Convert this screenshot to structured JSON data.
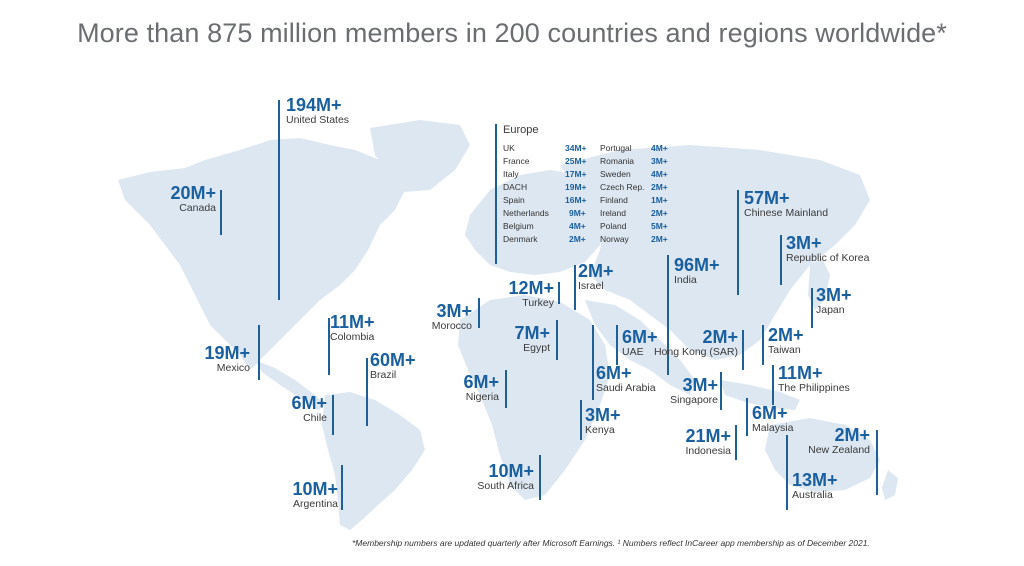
{
  "title": "More than 875 million members in 200 countries and regions worldwide*",
  "map_color": "#dde7f1",
  "accent_color": "#1a5fa0",
  "countries": [
    {
      "id": "us",
      "value": "194M+",
      "name": "United States"
    },
    {
      "id": "ca",
      "value": "20M+",
      "name": "Canada"
    },
    {
      "id": "mx",
      "value": "19M+",
      "name": "Mexico"
    },
    {
      "id": "co",
      "value": "11M+",
      "name": "Colombia"
    },
    {
      "id": "br",
      "value": "60M+",
      "name": "Brazil"
    },
    {
      "id": "cl",
      "value": "6M+",
      "name": "Chile"
    },
    {
      "id": "ar",
      "value": "10M+",
      "name": "Argentina"
    },
    {
      "id": "ma",
      "value": "3M+",
      "name": "Morocco"
    },
    {
      "id": "tr",
      "value": "12M+",
      "name": "Turkey"
    },
    {
      "id": "il",
      "value": "2M+",
      "name": "Israel"
    },
    {
      "id": "eg",
      "value": "7M+",
      "name": "Egypt"
    },
    {
      "id": "ng",
      "value": "6M+",
      "name": "Nigeria"
    },
    {
      "id": "ae",
      "value": "6M+",
      "name": "UAE"
    },
    {
      "id": "sa",
      "value": "6M+",
      "name": "Saudi Arabia"
    },
    {
      "id": "ke",
      "value": "3M+",
      "name": "Kenya"
    },
    {
      "id": "za",
      "value": "10M+",
      "name": "South Africa"
    },
    {
      "id": "in",
      "value": "96M+",
      "name": "India"
    },
    {
      "id": "cn",
      "value": "57M+",
      "name": "Chinese Mainland"
    },
    {
      "id": "kr",
      "value": "3M+",
      "name": "Republic of Korea"
    },
    {
      "id": "jp",
      "value": "3M+",
      "name": "Japan"
    },
    {
      "id": "hk",
      "value": "2M+",
      "name": "Hong Kong (SAR)"
    },
    {
      "id": "tw",
      "value": "2M+",
      "name": "Taiwan"
    },
    {
      "id": "ph",
      "value": "11M+",
      "name": "The Philippines"
    },
    {
      "id": "sg",
      "value": "3M+",
      "name": "Singapore"
    },
    {
      "id": "my",
      "value": "6M+",
      "name": "Malaysia"
    },
    {
      "id": "id",
      "value": "21M+",
      "name": "Indonesia"
    },
    {
      "id": "nz",
      "value": "2M+",
      "name": "New Zealand"
    },
    {
      "id": "au",
      "value": "13M+",
      "name": "Australia"
    }
  ],
  "europe": {
    "heading": "Europe",
    "col1": [
      {
        "name": "UK",
        "value": "34M+"
      },
      {
        "name": "France",
        "value": "25M+"
      },
      {
        "name": "Italy",
        "value": "17M+"
      },
      {
        "name": "DACH",
        "value": "19M+"
      },
      {
        "name": "Spain",
        "value": "16M+"
      },
      {
        "name": "Netherlands",
        "value": "9M+"
      },
      {
        "name": "Belgium",
        "value": "4M+"
      },
      {
        "name": "Denmark",
        "value": "2M+"
      }
    ],
    "col2": [
      {
        "name": "Portugal",
        "value": "4M+"
      },
      {
        "name": "Romania",
        "value": "3M+"
      },
      {
        "name": "Sweden",
        "value": "4M+"
      },
      {
        "name": "Czech Rep.",
        "value": "2M+"
      },
      {
        "name": "Finland",
        "value": "1M+"
      },
      {
        "name": "Ireland",
        "value": "2M+"
      },
      {
        "name": "Poland",
        "value": "5M+"
      },
      {
        "name": "Norway",
        "value": "2M+"
      }
    ]
  },
  "footnote": "*Membership numbers are updated quarterly after Microsoft Earnings. ¹ Numbers reflect InCareer app membership as of December 2021."
}
